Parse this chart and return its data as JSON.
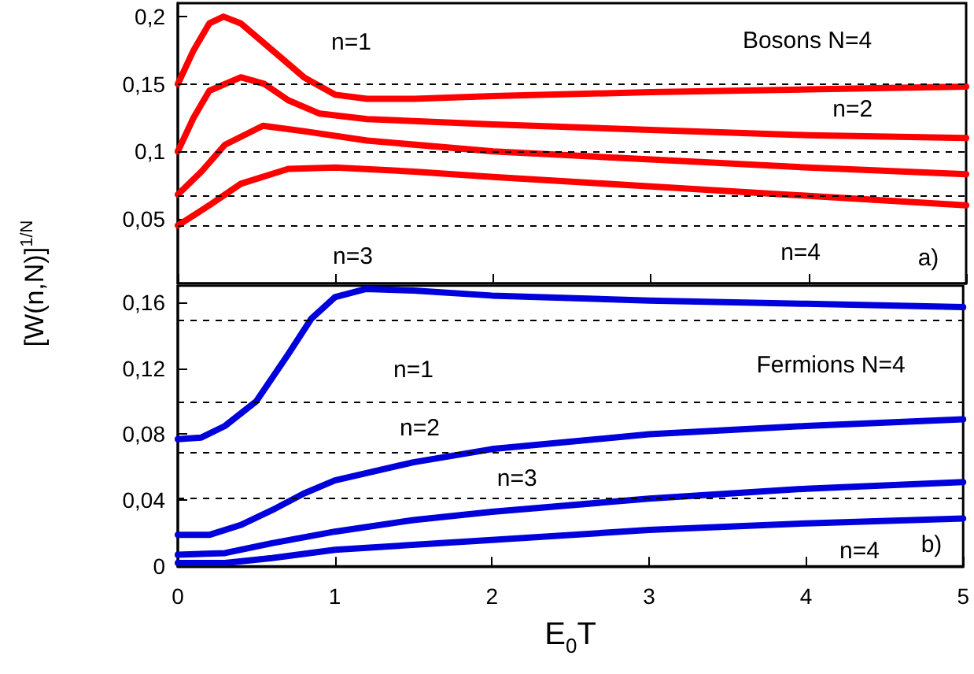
{
  "chart_data": [
    {
      "type": "line",
      "ylabel": "[W(n,N)]$^{1/N}$",
      "xlim": [
        0,
        5
      ],
      "xticks": [
        0,
        1,
        2,
        3,
        4,
        5
      ],
      "ylim": [
        0.002,
        0.21
      ],
      "yticks": [
        {
          "value": 0.05,
          "label": "0,05"
        },
        {
          "value": 0.1,
          "label": "0,1"
        },
        {
          "value": 0.15,
          "label": "0,15"
        },
        {
          "value": 0.2,
          "label": "0,2"
        }
      ],
      "tick_labels": "y",
      "marker": "none",
      "line_style": "solid",
      "series": [
        {
          "color": "#ff0000",
          "x": [
            0,
            0.1,
            0.2,
            0.29,
            0.4,
            0.6,
            0.8,
            1.0,
            1.2,
            1.5,
            2,
            3,
            4,
            5
          ],
          "values": [
            0.15,
            0.175,
            0.195,
            0.2,
            0.195,
            0.175,
            0.155,
            0.142,
            0.139,
            0.139,
            0.141,
            0.144,
            0.146,
            0.148
          ]
        },
        {
          "color": "#ff0000",
          "x": [
            0,
            0.1,
            0.2,
            0.4,
            0.55,
            0.7,
            0.9,
            1.2,
            2,
            3,
            4,
            5
          ],
          "values": [
            0.1,
            0.125,
            0.145,
            0.155,
            0.15,
            0.138,
            0.128,
            0.124,
            0.12,
            0.116,
            0.112,
            0.11
          ]
        },
        {
          "color": "#ff0000",
          "x": [
            0,
            0.15,
            0.3,
            0.54,
            0.8,
            1.2,
            2,
            3,
            4,
            5
          ],
          "values": [
            0.068,
            0.085,
            0.105,
            0.119,
            0.115,
            0.108,
            0.1,
            0.094,
            0.088,
            0.083
          ]
        },
        {
          "color": "#ff0000",
          "x": [
            0,
            0.2,
            0.4,
            0.7,
            1,
            1.5,
            2,
            3,
            4,
            5
          ],
          "values": [
            0.045,
            0.06,
            0.076,
            0.087,
            0.088,
            0.085,
            0.081,
            0.074,
            0.067,
            0.06
          ]
        }
      ],
      "ref_lines": [
        {
          "axis": "y",
          "value": 0.15,
          "color": "#000000",
          "line_style": "dashed"
        },
        {
          "axis": "y",
          "value": 0.1,
          "color": "#000000",
          "line_style": "dashed"
        },
        {
          "axis": "y",
          "value": 0.0675,
          "color": "#000000",
          "line_style": "dashed"
        },
        {
          "axis": "y",
          "value": 0.045,
          "color": "#000000",
          "line_style": "dashed"
        }
      ],
      "annotations": [
        "Bosons N=4",
        {
          "text": "n=1",
          "x": 1.1,
          "y": 0.181
        },
        {
          "text": "n=2",
          "x": 4.28,
          "y": 0.131
        },
        {
          "text": "n=3",
          "x": 1.11,
          "y": 0.022
        },
        {
          "text": "n=4",
          "x": 3.95,
          "y": 0.025
        },
        "a)"
      ]
    },
    {
      "type": "line",
      "xlabel": "E$_{0}$T",
      "xlim": [
        0,
        5
      ],
      "xticks": [
        0,
        1,
        2,
        3,
        4,
        5
      ],
      "ylim": [
        0,
        0.17
      ],
      "yticks": [
        0,
        {
          "value": 0.04,
          "label": "0,04"
        },
        {
          "value": 0.08,
          "label": "0,08"
        },
        {
          "value": 0.12,
          "label": "0,12"
        },
        {
          "value": 0.16,
          "label": "0,16"
        }
      ],
      "marker": "none",
      "line_style": "solid",
      "series": [
        {
          "color": "#0000dd",
          "x": [
            0,
            0.15,
            0.3,
            0.5,
            0.7,
            0.85,
            1,
            1.2,
            1.5,
            2,
            3,
            4,
            5
          ],
          "values": [
            0.077,
            0.078,
            0.085,
            0.1,
            0.128,
            0.15,
            0.163,
            0.168,
            0.167,
            0.164,
            0.161,
            0.159,
            0.157
          ]
        },
        {
          "color": "#0000dd",
          "x": [
            0,
            0.2,
            0.4,
            0.6,
            0.8,
            1,
            1.5,
            2,
            3,
            4,
            5
          ],
          "values": [
            0.019,
            0.019,
            0.025,
            0.034,
            0.044,
            0.052,
            0.063,
            0.071,
            0.08,
            0.085,
            0.089
          ]
        },
        {
          "color": "#0000dd",
          "x": [
            0,
            0.3,
            0.6,
            1,
            1.5,
            2,
            3,
            4,
            5
          ],
          "values": [
            0.007,
            0.008,
            0.014,
            0.021,
            0.028,
            0.033,
            0.041,
            0.047,
            0.051
          ]
        },
        {
          "color": "#0000dd",
          "x": [
            0,
            0.3,
            0.6,
            1,
            2,
            3,
            4,
            5
          ],
          "values": [
            0.002,
            0.002,
            0.005,
            0.01,
            0.016,
            0.022,
            0.026,
            0.029
          ]
        }
      ],
      "ref_lines": [
        {
          "axis": "y",
          "value": 0.149,
          "color": "#000000",
          "line_style": "dashed"
        },
        {
          "axis": "y",
          "value": 0.1,
          "color": "#000000",
          "line_style": "dashed"
        },
        {
          "axis": "y",
          "value": 0.069,
          "color": "#000000",
          "line_style": "dashed"
        },
        {
          "axis": "y",
          "value": 0.041,
          "color": "#000000",
          "line_style": "dashed"
        }
      ],
      "annotations": [
        "Fermions N=4",
        {
          "text": "n=1",
          "x": 1.5,
          "y": 0.119
        },
        {
          "text": "n=2",
          "x": 1.54,
          "y": 0.0836
        },
        {
          "text": "n=3",
          "x": 2.16,
          "y": 0.0532
        },
        {
          "text": "n=4",
          "x": 4.34,
          "y": 0.009
        },
        "b)"
      ]
    }
  ]
}
